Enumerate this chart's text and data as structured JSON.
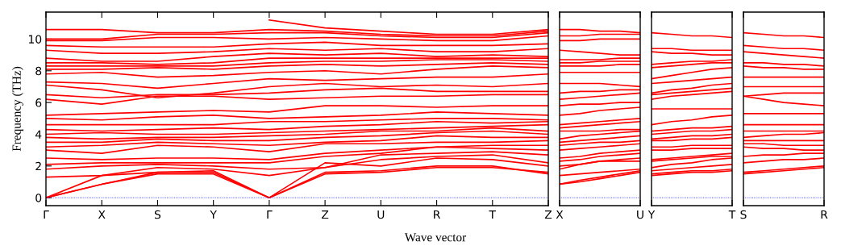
{
  "chart_data": [
    {
      "type": "line",
      "ylabel": "Frequency (THz)",
      "xlabel": "Wave vector",
      "ylim": [
        -0.5,
        11.7
      ],
      "yticks": [
        0,
        2,
        4,
        6,
        8,
        10
      ],
      "categories": [
        "Γ",
        "X",
        "S",
        "Y",
        "Γ",
        "Z",
        "U",
        "R",
        "T",
        "Z"
      ],
      "ref_lines": [
        {
          "axis": "y",
          "value": 0,
          "color": "#0000ff",
          "line_style": "dotted"
        }
      ],
      "series": [
        {
          "color": "#ff0000",
          "values": [
            0,
            0.85,
            1.5,
            1.5,
            0,
            1.5,
            1.6,
            1.9,
            1.9,
            1.6
          ]
        },
        {
          "color": "#ff0000",
          "values": [
            0,
            0.85,
            1.6,
            1.6,
            0,
            1.6,
            1.7,
            2.0,
            2.0,
            1.5
          ]
        },
        {
          "color": "#ff0000",
          "values": [
            0,
            1.4,
            1.6,
            1.7,
            0,
            2.2,
            2.0,
            2.5,
            2.4,
            2.0
          ]
        },
        {
          "color": "#ff0000",
          "values": [
            1.3,
            1.4,
            1.9,
            1.8,
            1.4,
            1.9,
            2.4,
            2.6,
            2.7,
            2.2
          ]
        },
        {
          "color": "#ff0000",
          "values": [
            1.8,
            2.0,
            2.1,
            2.0,
            1.8,
            1.9,
            2.7,
            2.8,
            2.9,
            2.7
          ]
        },
        {
          "color": "#ff0000",
          "values": [
            2.1,
            2.2,
            2.2,
            2.2,
            2.2,
            2.6,
            2.8,
            3.2,
            3.1,
            3.0
          ]
        },
        {
          "color": "#ff0000",
          "values": [
            2.5,
            2.4,
            2.5,
            2.5,
            2.4,
            2.8,
            3.0,
            3.2,
            3.3,
            3.3
          ]
        },
        {
          "color": "#ff0000",
          "values": [
            3.0,
            2.8,
            3.3,
            3.2,
            2.9,
            3.4,
            3.4,
            3.5,
            3.5,
            3.6
          ]
        },
        {
          "color": "#ff0000",
          "values": [
            3.2,
            3.3,
            3.5,
            3.4,
            3.3,
            3.5,
            3.6,
            3.9,
            3.8,
            3.8
          ]
        },
        {
          "color": "#ff0000",
          "values": [
            3.5,
            3.5,
            3.7,
            3.6,
            3.6,
            3.8,
            3.9,
            4.1,
            4.2,
            4.0
          ]
        },
        {
          "color": "#ff0000",
          "values": [
            3.8,
            3.7,
            3.8,
            3.8,
            3.9,
            4.0,
            4.2,
            4.2,
            4.4,
            4.2
          ]
        },
        {
          "color": "#ff0000",
          "values": [
            4.0,
            4.1,
            4.0,
            4.0,
            4.1,
            4.2,
            4.3,
            4.4,
            4.5,
            4.6
          ]
        },
        {
          "color": "#ff0000",
          "values": [
            4.3,
            4.2,
            4.3,
            4.4,
            4.3,
            4.5,
            4.6,
            4.8,
            4.7,
            4.8
          ]
        },
        {
          "color": "#ff0000",
          "values": [
            4.6,
            4.6,
            4.6,
            4.6,
            4.8,
            4.8,
            4.9,
            5.0,
            5.0,
            4.9
          ]
        },
        {
          "color": "#ff0000",
          "values": [
            5.0,
            4.9,
            5.1,
            5.2,
            5.0,
            5.1,
            5.2,
            5.4,
            5.3,
            5.2
          ]
        },
        {
          "color": "#ff0000",
          "values": [
            5.2,
            5.3,
            5.4,
            5.5,
            5.4,
            5.8,
            5.8,
            5.7,
            5.8,
            5.8
          ]
        },
        {
          "color": "#ff0000",
          "values": [
            6.2,
            5.9,
            6.4,
            6.4,
            6.2,
            6.3,
            6.4,
            6.4,
            6.5,
            6.5
          ]
        },
        {
          "color": "#ff0000",
          "values": [
            6.5,
            6.3,
            6.5,
            6.5,
            6.6,
            6.8,
            6.9,
            6.7,
            6.7,
            6.7
          ]
        },
        {
          "color": "#ff0000",
          "values": [
            7.1,
            6.8,
            6.3,
            6.6,
            7.0,
            7.2,
            7.0,
            7.1,
            7.0,
            7.2
          ]
        },
        {
          "color": "#ff0000",
          "values": [
            7.3,
            7.2,
            6.9,
            7.2,
            7.5,
            7.4,
            7.5,
            7.6,
            7.6,
            7.8
          ]
        },
        {
          "color": "#ff0000",
          "values": [
            7.8,
            7.9,
            7.6,
            7.7,
            7.9,
            8.0,
            7.8,
            8.1,
            8.3,
            8.2
          ]
        },
        {
          "color": "#ff0000",
          "values": [
            8.1,
            8.1,
            8.2,
            8.1,
            8.3,
            8.4,
            8.3,
            8.4,
            8.5,
            8.4
          ]
        },
        {
          "color": "#ff0000",
          "values": [
            8.3,
            8.3,
            8.3,
            8.3,
            8.5,
            8.6,
            8.6,
            8.7,
            8.7,
            8.6
          ]
        },
        {
          "color": "#ff0000",
          "values": [
            8.5,
            8.5,
            8.4,
            8.5,
            8.8,
            8.8,
            8.8,
            8.8,
            8.8,
            8.8
          ]
        },
        {
          "color": "#ff0000",
          "values": [
            8.8,
            8.6,
            8.6,
            8.9,
            9.1,
            9.0,
            9.1,
            8.9,
            9.0,
            8.9
          ]
        },
        {
          "color": "#ff0000",
          "values": [
            9.3,
            9.1,
            9.1,
            9.2,
            9.4,
            9.3,
            9.4,
            9.2,
            9.2,
            9.4
          ]
        },
        {
          "color": "#ff0000",
          "values": [
            9.6,
            9.5,
            9.5,
            9.5,
            9.7,
            9.8,
            9.6,
            9.6,
            9.6,
            9.7
          ]
        },
        {
          "color": "#ff0000",
          "values": [
            9.9,
            9.9,
            10.1,
            10.1,
            10.0,
            10.1,
            10.0,
            9.9,
            9.9,
            10.2
          ]
        },
        {
          "color": "#ff0000",
          "values": [
            10.0,
            10.0,
            10.3,
            10.3,
            10.4,
            10.4,
            10.2,
            10.1,
            10.1,
            10.4
          ]
        },
        {
          "color": "#ff0000",
          "values": [
            10.6,
            10.6,
            10.4,
            10.4,
            10.6,
            10.5,
            10.3,
            10.2,
            10.2,
            10.5
          ]
        },
        {
          "color": "#ff0000",
          "values": [
            null,
            null,
            null,
            null,
            11.2,
            10.7,
            10.5,
            10.3,
            10.3,
            10.6
          ]
        }
      ]
    },
    {
      "type": "line",
      "ylim": [
        -0.5,
        11.7
      ],
      "yticks": [
        0,
        2,
        4,
        6,
        8,
        10
      ],
      "tick_labels": "x",
      "categories": [
        "X",
        null,
        null,
        null,
        "U"
      ],
      "ref_lines": [
        {
          "axis": "y",
          "value": 0,
          "color": "#0000ff",
          "line_style": "dotted"
        }
      ],
      "series": [
        {
          "color": "#ff0000",
          "values": [
            0.85,
            1.0,
            1.2,
            1.4,
            1.6
          ]
        },
        {
          "color": "#ff0000",
          "values": [
            0.85,
            1.1,
            1.3,
            1.5,
            1.7
          ]
        },
        {
          "color": "#ff0000",
          "values": [
            1.4,
            1.5,
            1.6,
            1.7,
            1.8
          ]
        },
        {
          "color": "#ff0000",
          "values": [
            1.8,
            2.1,
            2.3,
            2.3,
            2.3
          ]
        },
        {
          "color": "#ff0000",
          "values": [
            2.0,
            2.1,
            2.3,
            2.4,
            2.5
          ]
        },
        {
          "color": "#ff0000",
          "values": [
            2.3,
            2.4,
            2.6,
            2.7,
            2.8
          ]
        },
        {
          "color": "#ff0000",
          "values": [
            2.5,
            2.6,
            2.8,
            2.9,
            3.0
          ]
        },
        {
          "color": "#ff0000",
          "values": [
            3.0,
            3.1,
            3.2,
            3.3,
            3.4
          ]
        },
        {
          "color": "#ff0000",
          "values": [
            3.3,
            3.4,
            3.5,
            3.5,
            3.6
          ]
        },
        {
          "color": "#ff0000",
          "values": [
            3.5,
            3.6,
            3.7,
            3.8,
            3.9
          ]
        },
        {
          "color": "#ff0000",
          "values": [
            3.7,
            3.9,
            4.0,
            4.1,
            4.2
          ]
        },
        {
          "color": "#ff0000",
          "values": [
            4.2,
            4.2,
            4.2,
            4.3,
            4.3
          ]
        },
        {
          "color": "#ff0000",
          "values": [
            4.4,
            4.5,
            4.6,
            4.7,
            4.8
          ]
        },
        {
          "color": "#ff0000",
          "values": [
            4.6,
            4.7,
            4.8,
            4.9,
            5.0
          ]
        },
        {
          "color": "#ff0000",
          "values": [
            5.2,
            5.3,
            5.5,
            5.6,
            5.7
          ]
        },
        {
          "color": "#ff0000",
          "values": [
            5.8,
            5.9,
            5.9,
            6.0,
            6.0
          ]
        },
        {
          "color": "#ff0000",
          "values": [
            6.2,
            6.3,
            6.4,
            6.5,
            6.6
          ]
        },
        {
          "color": "#ff0000",
          "values": [
            6.6,
            6.7,
            6.7,
            6.8,
            6.8
          ]
        },
        {
          "color": "#ff0000",
          "values": [
            7.2,
            7.2,
            7.2,
            7.1,
            7.0
          ]
        },
        {
          "color": "#ff0000",
          "values": [
            7.9,
            7.9,
            7.9,
            7.9,
            7.9
          ]
        },
        {
          "color": "#ff0000",
          "values": [
            8.3,
            8.3,
            8.3,
            8.4,
            8.4
          ]
        },
        {
          "color": "#ff0000",
          "values": [
            8.5,
            8.5,
            8.6,
            8.6,
            8.6
          ]
        },
        {
          "color": "#ff0000",
          "values": [
            8.7,
            8.7,
            8.7,
            8.8,
            8.8
          ]
        },
        {
          "color": "#ff0000",
          "values": [
            9.3,
            9.2,
            9.1,
            9.0,
            9.0
          ]
        },
        {
          "color": "#ff0000",
          "values": [
            9.9,
            9.9,
            10.0,
            10.0,
            10.0
          ]
        },
        {
          "color": "#ff0000",
          "values": [
            10.2,
            10.2,
            10.3,
            10.3,
            10.3
          ]
        },
        {
          "color": "#ff0000",
          "values": [
            10.6,
            10.6,
            10.5,
            10.5,
            10.4
          ]
        }
      ]
    },
    {
      "type": "line",
      "ylim": [
        -0.5,
        11.7
      ],
      "yticks": [
        0,
        2,
        4,
        6,
        8,
        10
      ],
      "tick_labels": "x",
      "categories": [
        "Y",
        null,
        null,
        null,
        "T"
      ],
      "ref_lines": [
        {
          "axis": "y",
          "value": 0,
          "color": "#0000ff",
          "line_style": "dotted"
        }
      ],
      "series": [
        {
          "color": "#ff0000",
          "values": [
            1.4,
            1.5,
            1.6,
            1.6,
            1.7
          ]
        },
        {
          "color": "#ff0000",
          "values": [
            1.5,
            1.6,
            1.7,
            1.7,
            1.8
          ]
        },
        {
          "color": "#ff0000",
          "values": [
            1.7,
            1.8,
            1.9,
            2.0,
            2.1
          ]
        },
        {
          "color": "#ff0000",
          "values": [
            1.9,
            2.1,
            2.2,
            2.4,
            2.5
          ]
        },
        {
          "color": "#ff0000",
          "values": [
            2.3,
            2.4,
            2.5,
            2.6,
            2.6
          ]
        },
        {
          "color": "#ff0000",
          "values": [
            2.4,
            2.5,
            2.6,
            2.7,
            2.8
          ]
        },
        {
          "color": "#ff0000",
          "values": [
            3.0,
            3.0,
            3.1,
            3.1,
            3.1
          ]
        },
        {
          "color": "#ff0000",
          "values": [
            3.2,
            3.2,
            3.3,
            3.3,
            3.3
          ]
        },
        {
          "color": "#ff0000",
          "values": [
            3.6,
            3.6,
            3.7,
            3.7,
            3.8
          ]
        },
        {
          "color": "#ff0000",
          "values": [
            3.7,
            3.8,
            3.9,
            3.9,
            4.0
          ]
        },
        {
          "color": "#ff0000",
          "values": [
            4.0,
            4.1,
            4.2,
            4.2,
            4.3
          ]
        },
        {
          "color": "#ff0000",
          "values": [
            4.2,
            4.3,
            4.4,
            4.4,
            4.5
          ]
        },
        {
          "color": "#ff0000",
          "values": [
            4.6,
            4.8,
            4.9,
            5.1,
            5.2
          ]
        },
        {
          "color": "#ff0000",
          "values": [
            5.6,
            5.6,
            5.6,
            5.6,
            5.6
          ]
        },
        {
          "color": "#ff0000",
          "values": [
            6.2,
            6.4,
            6.5,
            6.6,
            6.7
          ]
        },
        {
          "color": "#ff0000",
          "values": [
            6.5,
            6.6,
            6.7,
            6.8,
            6.9
          ]
        },
        {
          "color": "#ff0000",
          "values": [
            6.6,
            6.8,
            6.9,
            7.1,
            7.2
          ]
        },
        {
          "color": "#ff0000",
          "values": [
            7.2,
            7.3,
            7.4,
            7.5,
            7.6
          ]
        },
        {
          "color": "#ff0000",
          "values": [
            7.5,
            7.7,
            7.9,
            8.1,
            8.2
          ]
        },
        {
          "color": "#ff0000",
          "values": [
            8.2,
            8.3,
            8.4,
            8.5,
            8.5
          ]
        },
        {
          "color": "#ff0000",
          "values": [
            8.4,
            8.5,
            8.6,
            8.6,
            8.7
          ]
        },
        {
          "color": "#ff0000",
          "values": [
            9.2,
            9.1,
            9.1,
            9.0,
            9.0
          ]
        },
        {
          "color": "#ff0000",
          "values": [
            9.4,
            9.4,
            9.3,
            9.3,
            9.3
          ]
        },
        {
          "color": "#ff0000",
          "values": [
            10.4,
            10.3,
            10.2,
            10.2,
            10.1
          ]
        }
      ]
    },
    {
      "type": "line",
      "ylim": [
        -0.5,
        11.7
      ],
      "yticks": [
        0,
        2,
        4,
        6,
        8,
        10
      ],
      "tick_labels": "x",
      "categories": [
        "S",
        null,
        null,
        null,
        "R"
      ],
      "ref_lines": [
        {
          "axis": "y",
          "value": 0,
          "color": "#0000ff",
          "line_style": "dotted"
        }
      ],
      "series": [
        {
          "color": "#ff0000",
          "values": [
            1.5,
            1.6,
            1.7,
            1.8,
            1.9
          ]
        },
        {
          "color": "#ff0000",
          "values": [
            1.6,
            1.7,
            1.8,
            1.9,
            2.0
          ]
        },
        {
          "color": "#ff0000",
          "values": [
            2.2,
            2.3,
            2.4,
            2.4,
            2.5
          ]
        },
        {
          "color": "#ff0000",
          "values": [
            2.6,
            2.7,
            2.7,
            2.8,
            2.8
          ]
        },
        {
          "color": "#ff0000",
          "values": [
            3.2,
            3.1,
            3.1,
            3.0,
            3.0
          ]
        },
        {
          "color": "#ff0000",
          "values": [
            3.4,
            3.4,
            3.3,
            3.3,
            3.3
          ]
        },
        {
          "color": "#ff0000",
          "values": [
            3.6,
            3.6,
            3.6,
            3.6,
            3.6
          ]
        },
        {
          "color": "#ff0000",
          "values": [
            3.8,
            3.9,
            4.0,
            4.0,
            4.1
          ]
        },
        {
          "color": "#ff0000",
          "values": [
            4.2,
            4.2,
            4.2,
            4.2,
            4.2
          ]
        },
        {
          "color": "#ff0000",
          "values": [
            4.6,
            4.6,
            4.6,
            4.6,
            4.6
          ]
        },
        {
          "color": "#ff0000",
          "values": [
            5.3,
            5.3,
            5.3,
            5.3,
            5.3
          ]
        },
        {
          "color": "#ff0000",
          "values": [
            6.4,
            6.2,
            6.0,
            5.9,
            5.8
          ]
        },
        {
          "color": "#ff0000",
          "values": [
            6.4,
            6.5,
            6.6,
            6.6,
            6.6
          ]
        },
        {
          "color": "#ff0000",
          "values": [
            7.0,
            7.0,
            7.0,
            7.0,
            7.0
          ]
        },
        {
          "color": "#ff0000",
          "values": [
            7.6,
            7.6,
            7.6,
            7.6,
            7.6
          ]
        },
        {
          "color": "#ff0000",
          "values": [
            8.3,
            8.2,
            8.2,
            8.1,
            8.1
          ]
        },
        {
          "color": "#ff0000",
          "values": [
            8.5,
            8.5,
            8.4,
            8.4,
            8.3
          ]
        },
        {
          "color": "#ff0000",
          "values": [
            9.2,
            9.1,
            9.0,
            8.9,
            8.8
          ]
        },
        {
          "color": "#ff0000",
          "values": [
            9.6,
            9.5,
            9.4,
            9.4,
            9.3
          ]
        },
        {
          "color": "#ff0000",
          "values": [
            10.4,
            10.3,
            10.2,
            10.2,
            10.1
          ]
        }
      ]
    }
  ]
}
